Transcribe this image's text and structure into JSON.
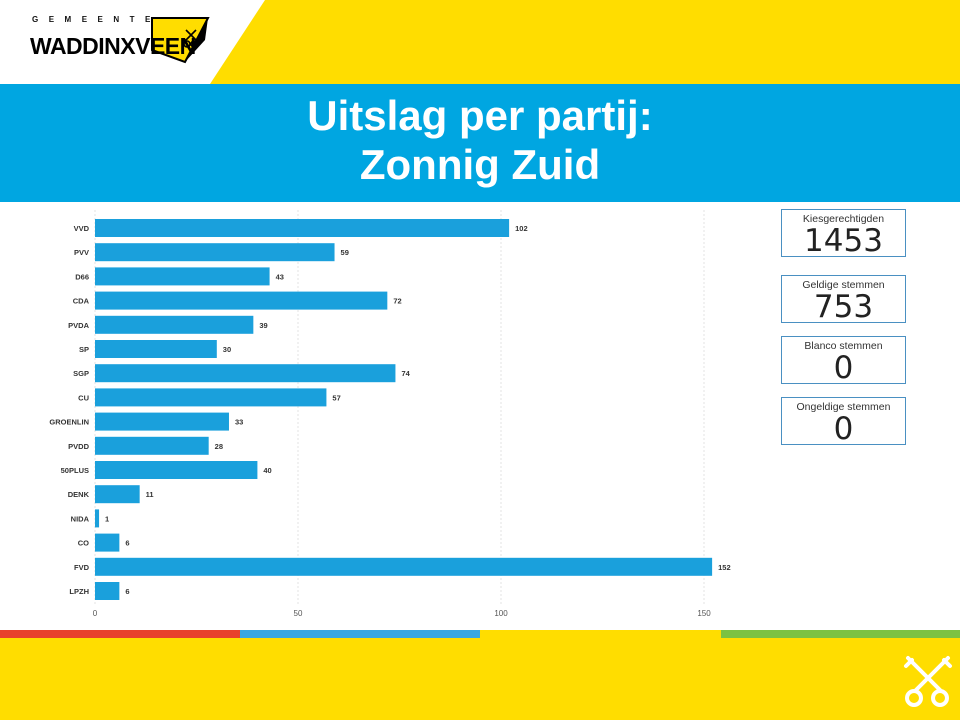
{
  "header": {
    "logo_small": "GEMEENTE",
    "logo_name": "WADDINXVEEN",
    "brand_colors": {
      "yellow": "#ffdd00",
      "blue": "#00a6e1",
      "black": "#000000"
    }
  },
  "title": {
    "line1": "Uitslag per partij:",
    "line2": "Zonnig Zuid"
  },
  "chart_data": {
    "type": "bar",
    "orientation": "horizontal",
    "categories": [
      "VVD",
      "PVV",
      "D66",
      "CDA",
      "PVDA",
      "SP",
      "SGP",
      "CU",
      "GROENLIN",
      "PVDD",
      "50PLUS",
      "DENK",
      "NIDA",
      "CO",
      "FVD",
      "LPZH"
    ],
    "values": [
      102,
      59,
      43,
      72,
      39,
      30,
      74,
      57,
      33,
      28,
      40,
      11,
      1,
      6,
      152,
      6
    ],
    "x_ticks": [
      0,
      50,
      100,
      150
    ],
    "xlim": [
      0,
      155
    ],
    "bar_color": "#1aa0dc",
    "grid": true
  },
  "kpis": [
    {
      "label": "Kiesgerechtigden",
      "value": "1453"
    },
    {
      "label": "Geldige stemmen",
      "value": "753"
    },
    {
      "label": "Blanco stemmen",
      "value": "0"
    },
    {
      "label": "Ongeldige stemmen",
      "value": "0"
    }
  ],
  "footer": {
    "stripe_colors": [
      "#e8412c",
      "#3aa7e0",
      "#ffdd00",
      "#7cc242"
    ]
  }
}
